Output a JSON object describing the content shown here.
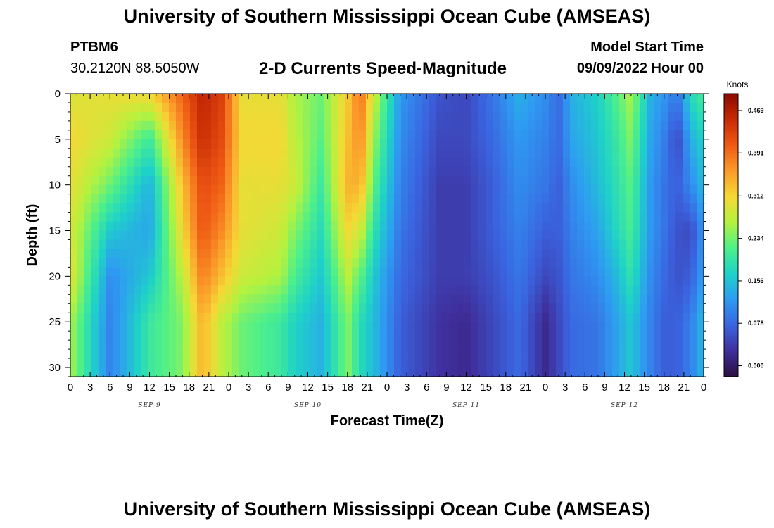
{
  "header": {
    "title": "University of Southern Mississippi Ocean Cube (AMSEAS)",
    "station_id": "PTBM6",
    "coordinates": "30.2120N  88.5050W",
    "chart_title": "2-D Currents Speed-Magnitude",
    "model_start_label": "Model Start Time",
    "model_start_value": "09/09/2022 Hour 00"
  },
  "footer": {
    "title": "University of Southern Mississippi Ocean Cube (AMSEAS)"
  },
  "chart_data": {
    "type": "heatmap",
    "xlabel": "Forecast Time(Z)",
    "ylabel": "Depth (ft)",
    "x_hours_range": [
      0,
      96
    ],
    "x_tick_labels": [
      "0",
      "3",
      "6",
      "9",
      "12",
      "15",
      "18",
      "21",
      "0",
      "3",
      "6",
      "9",
      "12",
      "15",
      "18",
      "21",
      "0",
      "3",
      "6",
      "9",
      "12",
      "15",
      "18",
      "21",
      "0",
      "3",
      "6",
      "9",
      "12",
      "15",
      "18",
      "21",
      "0"
    ],
    "day_labels": [
      {
        "label": "SEP 9",
        "hour": 12
      },
      {
        "label": "SEP 10",
        "hour": 36
      },
      {
        "label": "SEP 11",
        "hour": 60
      },
      {
        "label": "SEP 12",
        "hour": 84
      }
    ],
    "y_ticks": [
      0,
      5,
      10,
      15,
      20,
      25,
      30
    ],
    "ylim": [
      31,
      0
    ],
    "colorbar": {
      "unit": "Knots",
      "range": [
        -0.02,
        0.5
      ],
      "labels": [
        "0.000",
        "0.078",
        "0.156",
        "0.234",
        "0.312",
        "0.391",
        "0.469"
      ],
      "colors": [
        "#2b0f3f",
        "#3f2f9c",
        "#3a64e0",
        "#2e9bf2",
        "#1ed2c8",
        "#4ef08a",
        "#b5f23e",
        "#f6d835",
        "#fb9a2a",
        "#ef5a14",
        "#c72a05",
        "#8a0a02"
      ]
    },
    "depth_rows": [
      0,
      5,
      10,
      15,
      20,
      22.5,
      25,
      27.5,
      31
    ],
    "speed_grid_cols_hours": [
      0,
      6,
      12,
      17,
      20,
      23,
      26,
      32,
      34,
      38,
      42,
      44,
      46,
      50,
      56,
      60,
      64,
      68,
      72,
      74,
      76,
      80,
      83,
      85,
      88,
      90,
      92,
      94,
      96
    ],
    "speed_grid": [
      [
        0.29,
        0.31,
        0.3,
        0.29,
        0.3,
        0.26
      ],
      [
        0.3,
        0.28,
        0.23,
        0.16,
        0.11,
        0.1
      ],
      [
        0.31,
        0.2,
        0.14,
        0.13,
        0.16,
        0.2
      ],
      [
        0.4,
        0.37,
        0.33,
        0.31,
        0.27,
        0.24
      ],
      [
        0.46,
        0.45,
        0.42,
        0.41,
        0.38,
        0.34
      ],
      [
        0.43,
        0.42,
        0.4,
        0.37,
        0.33,
        0.27
      ],
      [
        0.3,
        0.31,
        0.3,
        0.3,
        0.28,
        0.23
      ],
      [
        0.3,
        0.31,
        0.3,
        0.28,
        0.26,
        0.2
      ],
      [
        0.26,
        0.27,
        0.28,
        0.24,
        0.21,
        0.17
      ],
      [
        0.23,
        0.22,
        0.2,
        0.18,
        0.16,
        0.14
      ],
      [
        0.32,
        0.33,
        0.34,
        0.31,
        0.27,
        0.24
      ],
      [
        0.39,
        0.37,
        0.34,
        0.28,
        0.22,
        0.18
      ],
      [
        0.28,
        0.25,
        0.22,
        0.19,
        0.16,
        0.15
      ],
      [
        0.12,
        0.11,
        0.1,
        0.09,
        0.08,
        0.07
      ],
      [
        0.06,
        0.05,
        0.04,
        0.04,
        0.04,
        0.03
      ],
      [
        0.05,
        0.05,
        0.04,
        0.04,
        0.04,
        0.02
      ],
      [
        0.09,
        0.08,
        0.07,
        0.07,
        0.06,
        0.05
      ],
      [
        0.14,
        0.12,
        0.11,
        0.1,
        0.09,
        0.08
      ],
      [
        0.11,
        0.1,
        0.09,
        0.07,
        0.05,
        0.02
      ],
      [
        0.08,
        0.08,
        0.07,
        0.07,
        0.06,
        0.05
      ],
      [
        0.14,
        0.13,
        0.11,
        0.1,
        0.09,
        0.08
      ],
      [
        0.17,
        0.16,
        0.15,
        0.13,
        0.11,
        0.09
      ],
      [
        0.22,
        0.2,
        0.19,
        0.18,
        0.15,
        0.13
      ],
      [
        0.26,
        0.24,
        0.22,
        0.21,
        0.19,
        0.16
      ],
      [
        0.14,
        0.13,
        0.12,
        0.12,
        0.11,
        0.1
      ],
      [
        0.12,
        0.1,
        0.09,
        0.09,
        0.08,
        0.07
      ],
      [
        0.09,
        0.05,
        0.07,
        0.06,
        0.06,
        0.07
      ],
      [
        0.18,
        0.14,
        0.11,
        0.05,
        0.07,
        0.1
      ],
      [
        0.21,
        0.17,
        0.15,
        0.12,
        0.13,
        0.15
      ]
    ],
    "speed_grid_layout": "rows = time columns (speed_grid_cols_hours); values per row correspond to depth_rows [0,5,10,15,20,25] ft; deeper values extend from last entry"
  }
}
